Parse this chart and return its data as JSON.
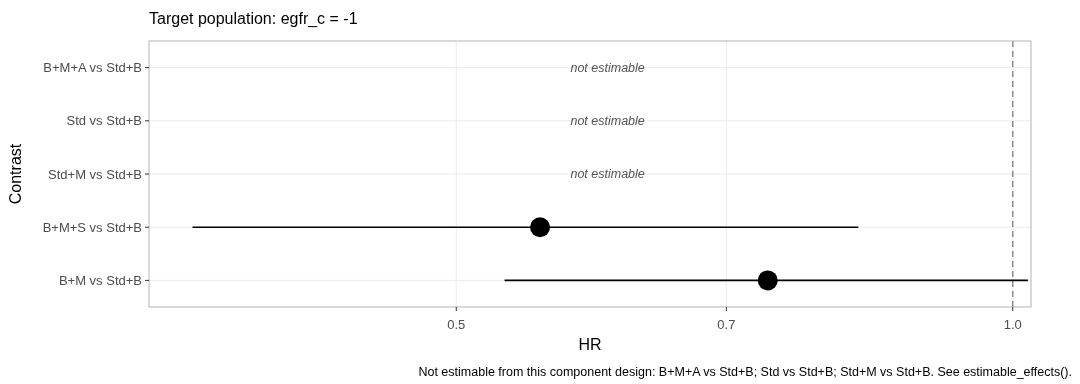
{
  "chart_data": {
    "type": "scatter",
    "title": "Target population: egfr_c = -1",
    "xlabel": "HR",
    "ylabel": "Contrast",
    "orientation": "horizontal",
    "log": "x",
    "grid": true,
    "marker": "circle",
    "categories": [
      "B+M+A vs Std+B",
      "Std vs Std+B",
      "Std+M vs Std+B",
      "B+M+S vs Std+B",
      "B+M vs Std+B"
    ],
    "series": [
      {
        "color": "#000000",
        "values": [
          null,
          null,
          null,
          0.555,
          0.737
        ],
        "errors": [
          null,
          null,
          null,
          [
            0.36,
            0.825
          ],
          [
            0.531,
            1.019
          ]
        ]
      }
    ],
    "xlim": [
      0.341,
      1.023
    ],
    "xticks": [
      0.5,
      0.7,
      {
        "value": 1,
        "label": "1.0"
      }
    ],
    "ref_lines": [
      {
        "axis": "x",
        "value": 1,
        "color": "#8c8c8c",
        "line_style": "dashed"
      }
    ],
    "annotations": [
      "not estimable",
      "not estimable",
      "not estimable",
      "Not estimable from this component design: B+M+A vs Std+B; Std vs Std+B; Std+M vs Std+B. See estimable_effects()."
    ]
  }
}
